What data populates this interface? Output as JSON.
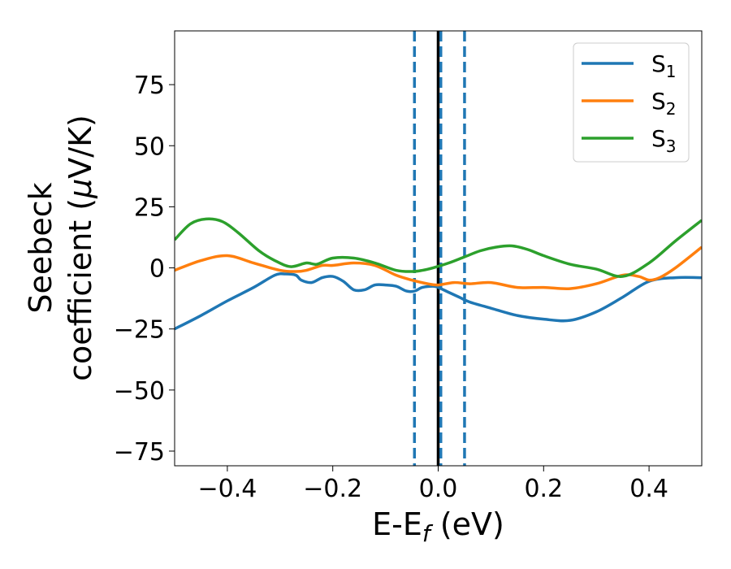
{
  "chart_data": {
    "type": "line",
    "xlabel": "E-E",
    "xlabel_sub": "f",
    "xlabel_unit": " (eV)",
    "ylabel_line1": "Seebeck",
    "ylabel_line2": "coefficient  (",
    "ylabel_mu": "μ",
    "ylabel_unit": "V/K)",
    "xlim": [
      -0.5,
      0.5
    ],
    "ylim": [
      -81,
      97
    ],
    "xticks": [
      -0.4,
      -0.2,
      0.0,
      0.2,
      0.4
    ],
    "xtick_labels": [
      "−0.4",
      "−0.2",
      "0.0",
      "0.2",
      "0.4"
    ],
    "yticks": [
      -75,
      -50,
      -25,
      0,
      25,
      50,
      75
    ],
    "ytick_labels": [
      "−75",
      "−50",
      "−25",
      "0",
      "25",
      "50",
      "75"
    ],
    "legend_position": "top-right",
    "grid": false,
    "vlines": [
      {
        "x": 0.0,
        "style": "solid",
        "color": "#000000"
      },
      {
        "x": -0.045,
        "style": "dashed",
        "color": "#1f77b4"
      },
      {
        "x": 0.005,
        "style": "dashed",
        "color": "#1f77b4"
      },
      {
        "x": 0.05,
        "style": "dashed",
        "color": "#1f77b4"
      }
    ],
    "series": [
      {
        "name": "S",
        "sub": "1",
        "color": "#1f77b4",
        "x": [
          -0.5,
          -0.45,
          -0.4,
          -0.35,
          -0.31,
          -0.29,
          -0.27,
          -0.26,
          -0.24,
          -0.22,
          -0.2,
          -0.18,
          -0.16,
          -0.14,
          -0.12,
          -0.1,
          -0.08,
          -0.06,
          -0.045,
          -0.03,
          -0.01,
          0.0,
          0.02,
          0.04,
          0.06,
          0.1,
          0.15,
          0.2,
          0.25,
          0.3,
          0.35,
          0.4,
          0.45,
          0.5
        ],
        "y": [
          -25,
          -19.5,
          -13.5,
          -8,
          -3,
          -2.5,
          -3,
          -5,
          -6,
          -4,
          -3.5,
          -5.5,
          -9,
          -9,
          -7,
          -7,
          -7.5,
          -9.5,
          -9.5,
          -8,
          -7.5,
          -8,
          -10,
          -12,
          -14,
          -16.5,
          -19.5,
          -21,
          -21.5,
          -18,
          -12,
          -5.5,
          -4,
          -4
        ]
      },
      {
        "name": "S",
        "sub": "2",
        "color": "#ff7f0e",
        "x": [
          -0.5,
          -0.45,
          -0.4,
          -0.35,
          -0.3,
          -0.27,
          -0.25,
          -0.22,
          -0.2,
          -0.16,
          -0.12,
          -0.08,
          -0.05,
          -0.02,
          0.0,
          0.03,
          0.06,
          0.1,
          0.15,
          0.2,
          0.25,
          0.3,
          0.35,
          0.38,
          0.4,
          0.42,
          0.45,
          0.5
        ],
        "y": [
          -1,
          3,
          5,
          2,
          -1,
          -1.5,
          -1,
          1,
          1,
          2,
          1,
          -3,
          -5,
          -6.5,
          -7,
          -6,
          -6.5,
          -6,
          -8,
          -8,
          -8.5,
          -6.5,
          -3,
          -3.5,
          -5,
          -4,
          0,
          8.5
        ]
      },
      {
        "name": "S",
        "sub": "3",
        "color": "#2ca02c",
        "x": [
          -0.5,
          -0.47,
          -0.44,
          -0.41,
          -0.38,
          -0.34,
          -0.31,
          -0.28,
          -0.25,
          -0.23,
          -0.2,
          -0.16,
          -0.12,
          -0.08,
          -0.05,
          -0.03,
          -0.01,
          0.02,
          0.05,
          0.08,
          0.11,
          0.14,
          0.17,
          0.2,
          0.25,
          0.3,
          0.35,
          0.4,
          0.45,
          0.5
        ],
        "y": [
          11.5,
          18,
          20,
          19,
          14.5,
          7,
          3,
          0.5,
          2,
          1.5,
          4,
          4,
          2,
          -1,
          -1.5,
          -1,
          0,
          2,
          4.5,
          7,
          8.5,
          9,
          7.5,
          5,
          1.5,
          -0.5,
          -3.5,
          2,
          11,
          19.5
        ]
      }
    ]
  }
}
